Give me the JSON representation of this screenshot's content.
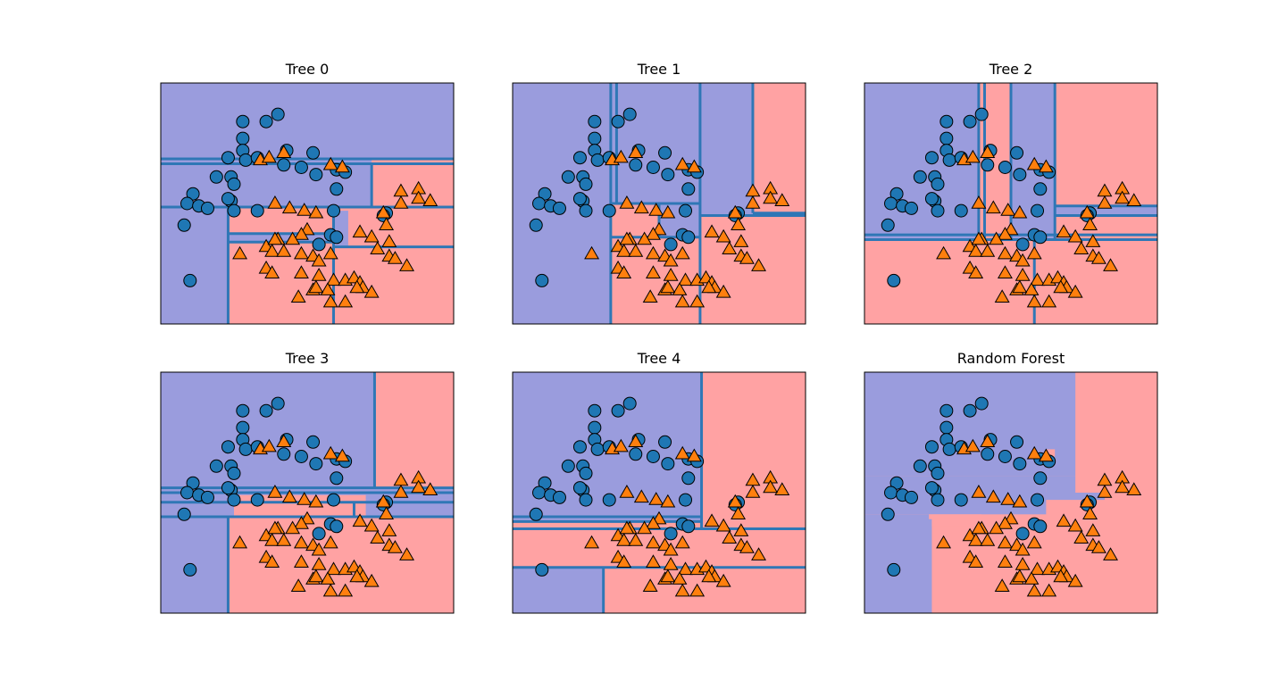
{
  "colors": {
    "class0_region": "#9a9cdd",
    "class1_region": "#ffa2a3",
    "class0_marker": "#1f77b4",
    "class1_marker": "#ff7f0e",
    "split_line": "#2f77b6",
    "edge": "#000000"
  },
  "chart_data": {
    "type": "scatter",
    "xlim": [
      0,
      1
    ],
    "ylim": [
      0,
      1
    ],
    "grid": false,
    "axes_ticks": false,
    "panels": [
      {
        "title": "Tree 0",
        "regions": [
          {
            "x0": 0,
            "x1": 1,
            "y0": 0.685,
            "y1": 1,
            "cls": 0
          },
          {
            "x0": 0,
            "x1": 0.23,
            "y0": 0,
            "y1": 0.685,
            "cls": 0
          },
          {
            "x0": 0.23,
            "x1": 0.72,
            "y0": 0.49,
            "y1": 0.685,
            "cls": 0
          },
          {
            "x0": 0.72,
            "x1": 1,
            "y0": 0.485,
            "y1": 0.665,
            "cls": 1
          },
          {
            "x0": 0.23,
            "x1": 1,
            "y0": 0,
            "y1": 0.485,
            "cls": 1
          },
          {
            "x0": 0.23,
            "x1": 0.59,
            "y0": 0.375,
            "y1": 0.485,
            "cls": 1
          },
          {
            "x0": 0.23,
            "x1": 0.59,
            "y0": 0.34,
            "y1": 0.375,
            "cls": 0
          },
          {
            "x0": 0.59,
            "x1": 0.64,
            "y0": 0.32,
            "y1": 0.47,
            "cls": 0
          }
        ],
        "splits": [
          {
            "x0": 0,
            "x1": 1,
            "y0": 0.685,
            "y1": 0.685
          },
          {
            "x0": 0,
            "x1": 1,
            "y0": 0.665,
            "y1": 0.665
          },
          {
            "x0": 0,
            "x1": 1,
            "y0": 0.485,
            "y1": 0.485
          },
          {
            "x0": 0.72,
            "x1": 0.72,
            "y0": 0.485,
            "y1": 0.665
          },
          {
            "x0": 0.23,
            "x1": 0.23,
            "y0": 0,
            "y1": 0.485
          },
          {
            "x0": 0.59,
            "x1": 0.59,
            "y0": 0,
            "y1": 0.485
          },
          {
            "x0": 0.23,
            "x1": 0.59,
            "y0": 0.375,
            "y1": 0.375
          },
          {
            "x0": 0.23,
            "x1": 0.59,
            "y0": 0.34,
            "y1": 0.34
          },
          {
            "x0": 0.59,
            "x1": 1,
            "y0": 0.32,
            "y1": 0.32
          }
        ]
      },
      {
        "title": "Tree 1",
        "regions": [
          {
            "x0": 0,
            "x1": 0.335,
            "y0": 0,
            "y1": 1,
            "cls": 0
          },
          {
            "x0": 0.335,
            "x1": 0.64,
            "y0": 0.5,
            "y1": 1,
            "cls": 0
          },
          {
            "x0": 0.335,
            "x1": 0.64,
            "y0": 0,
            "y1": 0.5,
            "cls": 1
          },
          {
            "x0": 0.335,
            "x1": 0.5,
            "y0": 0.36,
            "y1": 0.5,
            "cls": 1
          },
          {
            "x0": 0.5,
            "x1": 0.64,
            "y0": 0.36,
            "y1": 0.5,
            "cls": 0
          },
          {
            "x0": 0.64,
            "x1": 0.82,
            "y0": 0.45,
            "y1": 1,
            "cls": 0
          },
          {
            "x0": 0.82,
            "x1": 1,
            "y0": 0.46,
            "y1": 1,
            "cls": 1
          },
          {
            "x0": 0.64,
            "x1": 1,
            "y0": 0,
            "y1": 0.45,
            "cls": 1
          }
        ],
        "splits": [
          {
            "x0": 0.335,
            "x1": 0.335,
            "y0": 0,
            "y1": 1
          },
          {
            "x0": 0.355,
            "x1": 0.355,
            "y0": 0.5,
            "y1": 1
          },
          {
            "x0": 0.64,
            "x1": 0.64,
            "y0": 0,
            "y1": 1
          },
          {
            "x0": 0.82,
            "x1": 0.82,
            "y0": 0.46,
            "y1": 1
          },
          {
            "x0": 0.335,
            "x1": 0.64,
            "y0": 0.5,
            "y1": 0.5
          },
          {
            "x0": 0.335,
            "x1": 0.64,
            "y0": 0.36,
            "y1": 0.36
          },
          {
            "x0": 0.5,
            "x1": 0.5,
            "y0": 0.36,
            "y1": 0.5
          },
          {
            "x0": 0.64,
            "x1": 1,
            "y0": 0.45,
            "y1": 0.45
          },
          {
            "x0": 0.82,
            "x1": 1,
            "y0": 0.46,
            "y1": 0.46
          }
        ]
      },
      {
        "title": "Tree 2",
        "regions": [
          {
            "x0": 0,
            "x1": 1,
            "y0": 0,
            "y1": 0.35,
            "cls": 1
          },
          {
            "x0": 0,
            "x1": 0.39,
            "y0": 0.35,
            "y1": 1,
            "cls": 0
          },
          {
            "x0": 0.39,
            "x1": 0.5,
            "y0": 0.35,
            "y1": 1,
            "cls": 1
          },
          {
            "x0": 0.5,
            "x1": 0.65,
            "y0": 0.35,
            "y1": 1,
            "cls": 0
          },
          {
            "x0": 0.65,
            "x1": 1,
            "y0": 0.49,
            "y1": 1,
            "cls": 1
          },
          {
            "x0": 0.65,
            "x1": 1,
            "y0": 0.35,
            "y1": 0.49,
            "cls": 1
          },
          {
            "x0": 0.65,
            "x1": 1,
            "y0": 0.45,
            "y1": 0.49,
            "cls": 0
          }
        ],
        "splits": [
          {
            "x0": 0,
            "x1": 1,
            "y0": 0.35,
            "y1": 0.35
          },
          {
            "x0": 0,
            "x1": 1,
            "y0": 0.37,
            "y1": 0.37
          },
          {
            "x0": 0.39,
            "x1": 0.39,
            "y0": 0.35,
            "y1": 1
          },
          {
            "x0": 0.41,
            "x1": 0.41,
            "y0": 0.35,
            "y1": 1
          },
          {
            "x0": 0.5,
            "x1": 0.5,
            "y0": 0.35,
            "y1": 1
          },
          {
            "x0": 0.65,
            "x1": 0.65,
            "y0": 0.35,
            "y1": 1
          },
          {
            "x0": 0.65,
            "x1": 1,
            "y0": 0.49,
            "y1": 0.49
          },
          {
            "x0": 0.65,
            "x1": 1,
            "y0": 0.45,
            "y1": 0.45
          },
          {
            "x0": 0.58,
            "x1": 0.58,
            "y0": 0,
            "y1": 0.35
          }
        ]
      },
      {
        "title": "Tree 3",
        "regions": [
          {
            "x0": 0,
            "x1": 0.73,
            "y0": 0.52,
            "y1": 1,
            "cls": 0
          },
          {
            "x0": 0.73,
            "x1": 1,
            "y0": 0.52,
            "y1": 1,
            "cls": 1
          },
          {
            "x0": 0,
            "x1": 1,
            "y0": 0.4,
            "y1": 0.52,
            "cls": 0
          },
          {
            "x0": 0.25,
            "x1": 0.7,
            "y0": 0.4,
            "y1": 0.49,
            "cls": 1
          },
          {
            "x0": 0,
            "x1": 0.23,
            "y0": 0,
            "y1": 0.4,
            "cls": 0
          },
          {
            "x0": 0.23,
            "x1": 1,
            "y0": 0,
            "y1": 0.4,
            "cls": 1
          }
        ],
        "splits": [
          {
            "x0": 0.73,
            "x1": 0.73,
            "y0": 0.52,
            "y1": 1
          },
          {
            "x0": 0,
            "x1": 1,
            "y0": 0.52,
            "y1": 0.52
          },
          {
            "x0": 0,
            "x1": 1,
            "y0": 0.5,
            "y1": 0.5
          },
          {
            "x0": 0,
            "x1": 1,
            "y0": 0.46,
            "y1": 0.46
          },
          {
            "x0": 0,
            "x1": 1,
            "y0": 0.4,
            "y1": 0.4
          },
          {
            "x0": 0.23,
            "x1": 0.23,
            "y0": 0,
            "y1": 0.4
          },
          {
            "x0": 0.66,
            "x1": 0.66,
            "y0": 0.4,
            "y1": 0.46
          }
        ]
      },
      {
        "title": "Tree 4",
        "regions": [
          {
            "x0": 0,
            "x1": 0.645,
            "y0": 0.38,
            "y1": 1,
            "cls": 0
          },
          {
            "x0": 0.645,
            "x1": 1,
            "y0": 0.35,
            "y1": 1,
            "cls": 1
          },
          {
            "x0": 0,
            "x1": 1,
            "y0": 0.19,
            "y1": 0.35,
            "cls": 1
          },
          {
            "x0": 0,
            "x1": 0.31,
            "y0": 0,
            "y1": 0.19,
            "cls": 0
          },
          {
            "x0": 0.31,
            "x1": 1,
            "y0": 0,
            "y1": 0.19,
            "cls": 1
          }
        ],
        "splits": [
          {
            "x0": 0.645,
            "x1": 0.645,
            "y0": 0.35,
            "y1": 1
          },
          {
            "x0": 0,
            "x1": 0.645,
            "y0": 0.4,
            "y1": 0.4
          },
          {
            "x0": 0,
            "x1": 0.645,
            "y0": 0.38,
            "y1": 0.38
          },
          {
            "x0": 0,
            "x1": 1,
            "y0": 0.35,
            "y1": 0.35
          },
          {
            "x0": 0,
            "x1": 1,
            "y0": 0.19,
            "y1": 0.19
          },
          {
            "x0": 0.31,
            "x1": 0.31,
            "y0": 0,
            "y1": 0.19
          }
        ]
      },
      {
        "title": "Random Forest",
        "regions": [
          {
            "x0": 0,
            "x1": 1,
            "y0": 0,
            "y1": 1,
            "cls": 1
          },
          {
            "x0": 0,
            "x1": 0.72,
            "y0": 0.57,
            "y1": 1,
            "cls": 0
          },
          {
            "x0": 0,
            "x1": 0.62,
            "y0": 0.41,
            "y1": 0.57,
            "cls": 0
          },
          {
            "x0": 0,
            "x1": 0.23,
            "y0": 0,
            "y1": 0.41,
            "cls": 0
          },
          {
            "x0": 0.62,
            "x1": 0.72,
            "y0": 0.5,
            "y1": 0.57,
            "cls": 0
          },
          {
            "x0": 0.4,
            "x1": 0.82,
            "y0": 0.47,
            "y1": 0.5,
            "cls": 0
          },
          {
            "x0": 0.62,
            "x1": 0.65,
            "y0": 0.65,
            "y1": 0.68,
            "cls": 1
          },
          {
            "x0": 0.22,
            "x1": 0.4,
            "y0": 0.39,
            "y1": 0.41,
            "cls": 1
          },
          {
            "x0": 0.23,
            "x1": 0.52,
            "y0": 0.36,
            "y1": 0.39,
            "cls": 1
          }
        ],
        "splits": []
      }
    ],
    "series": [
      {
        "class": 0,
        "marker": "circle",
        "points": [
          [
            0.28,
            0.84
          ],
          [
            0.36,
            0.84
          ],
          [
            0.4,
            0.87
          ],
          [
            0.28,
            0.77
          ],
          [
            0.28,
            0.72
          ],
          [
            0.23,
            0.69
          ],
          [
            0.29,
            0.68
          ],
          [
            0.33,
            0.69
          ],
          [
            0.43,
            0.72
          ],
          [
            0.52,
            0.71
          ],
          [
            0.42,
            0.66
          ],
          [
            0.48,
            0.65
          ],
          [
            0.53,
            0.62
          ],
          [
            0.6,
            0.64
          ],
          [
            0.63,
            0.63
          ],
          [
            0.24,
            0.61
          ],
          [
            0.25,
            0.58
          ],
          [
            0.19,
            0.61
          ],
          [
            0.24,
            0.51
          ],
          [
            0.23,
            0.52
          ],
          [
            0.11,
            0.54
          ],
          [
            0.09,
            0.5
          ],
          [
            0.13,
            0.49
          ],
          [
            0.16,
            0.48
          ],
          [
            0.25,
            0.47
          ],
          [
            0.33,
            0.47
          ],
          [
            0.6,
            0.56
          ],
          [
            0.59,
            0.47
          ],
          [
            0.08,
            0.41
          ],
          [
            0.58,
            0.37
          ],
          [
            0.6,
            0.36
          ],
          [
            0.54,
            0.33
          ],
          [
            0.77,
            0.46
          ],
          [
            0.76,
            0.45
          ],
          [
            0.1,
            0.18
          ]
        ]
      },
      {
        "class": 1,
        "marker": "triangle",
        "points": [
          [
            0.34,
            0.68
          ],
          [
            0.37,
            0.69
          ],
          [
            0.42,
            0.71
          ],
          [
            0.58,
            0.66
          ],
          [
            0.62,
            0.65
          ],
          [
            0.82,
            0.55
          ],
          [
            0.88,
            0.56
          ],
          [
            0.92,
            0.51
          ],
          [
            0.39,
            0.5
          ],
          [
            0.44,
            0.48
          ],
          [
            0.49,
            0.47
          ],
          [
            0.53,
            0.46
          ],
          [
            0.76,
            0.46
          ],
          [
            0.77,
            0.41
          ],
          [
            0.5,
            0.39
          ],
          [
            0.48,
            0.37
          ],
          [
            0.45,
            0.35
          ],
          [
            0.4,
            0.35
          ],
          [
            0.36,
            0.32
          ],
          [
            0.38,
            0.3
          ],
          [
            0.42,
            0.3
          ],
          [
            0.48,
            0.29
          ],
          [
            0.52,
            0.28
          ],
          [
            0.54,
            0.26
          ],
          [
            0.58,
            0.29
          ],
          [
            0.68,
            0.38
          ],
          [
            0.72,
            0.36
          ],
          [
            0.74,
            0.31
          ],
          [
            0.78,
            0.28
          ],
          [
            0.8,
            0.27
          ],
          [
            0.84,
            0.24
          ],
          [
            0.36,
            0.23
          ],
          [
            0.38,
            0.21
          ],
          [
            0.48,
            0.21
          ],
          [
            0.54,
            0.2
          ],
          [
            0.59,
            0.18
          ],
          [
            0.63,
            0.18
          ],
          [
            0.66,
            0.19
          ],
          [
            0.68,
            0.17
          ],
          [
            0.52,
            0.14
          ],
          [
            0.57,
            0.14
          ],
          [
            0.69,
            0.15
          ],
          [
            0.72,
            0.13
          ],
          [
            0.58,
            0.09
          ],
          [
            0.63,
            0.09
          ],
          [
            0.27,
            0.29
          ],
          [
            0.82,
            0.5
          ],
          [
            0.88,
            0.52
          ],
          [
            0.78,
            0.34
          ],
          [
            0.47,
            0.11
          ],
          [
            0.53,
            0.15
          ],
          [
            0.39,
            0.35
          ],
          [
            0.67,
            0.15
          ]
        ]
      }
    ]
  }
}
